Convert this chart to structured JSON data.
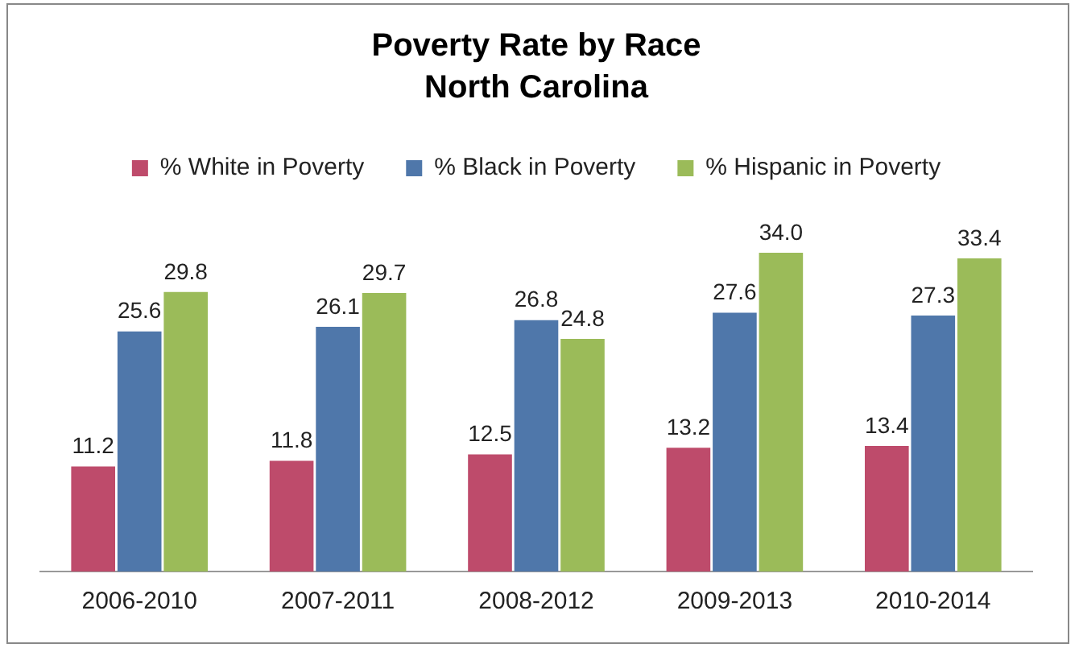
{
  "chart_data": {
    "type": "bar",
    "title": "Poverty Rate by Race",
    "subtitle": "North Carolina",
    "categories": [
      "2006-2010",
      "2007-2011",
      "2008-2012",
      "2009-2013",
      "2010-2014"
    ],
    "series": [
      {
        "name": "% White in Poverty",
        "color": "#be4b6b",
        "values": [
          11.2,
          11.8,
          12.5,
          13.2,
          13.4
        ],
        "value_labels": [
          "11.2",
          "11.8",
          "12.5",
          "13.2",
          "13.4"
        ]
      },
      {
        "name": "% Black in Poverty",
        "color": "#4f77aa",
        "values": [
          25.6,
          26.1,
          26.8,
          27.6,
          27.3
        ],
        "value_labels": [
          "25.6",
          "26.1",
          "26.8",
          "27.6",
          "27.3"
        ]
      },
      {
        "name": "% Hispanic in Poverty",
        "color": "#9bbb59",
        "values": [
          29.8,
          29.7,
          24.8,
          34.0,
          33.4
        ],
        "value_labels": [
          "29.8",
          "29.7",
          "24.8",
          "34.0",
          "33.4"
        ]
      }
    ],
    "legend": "top",
    "grid": false
  }
}
